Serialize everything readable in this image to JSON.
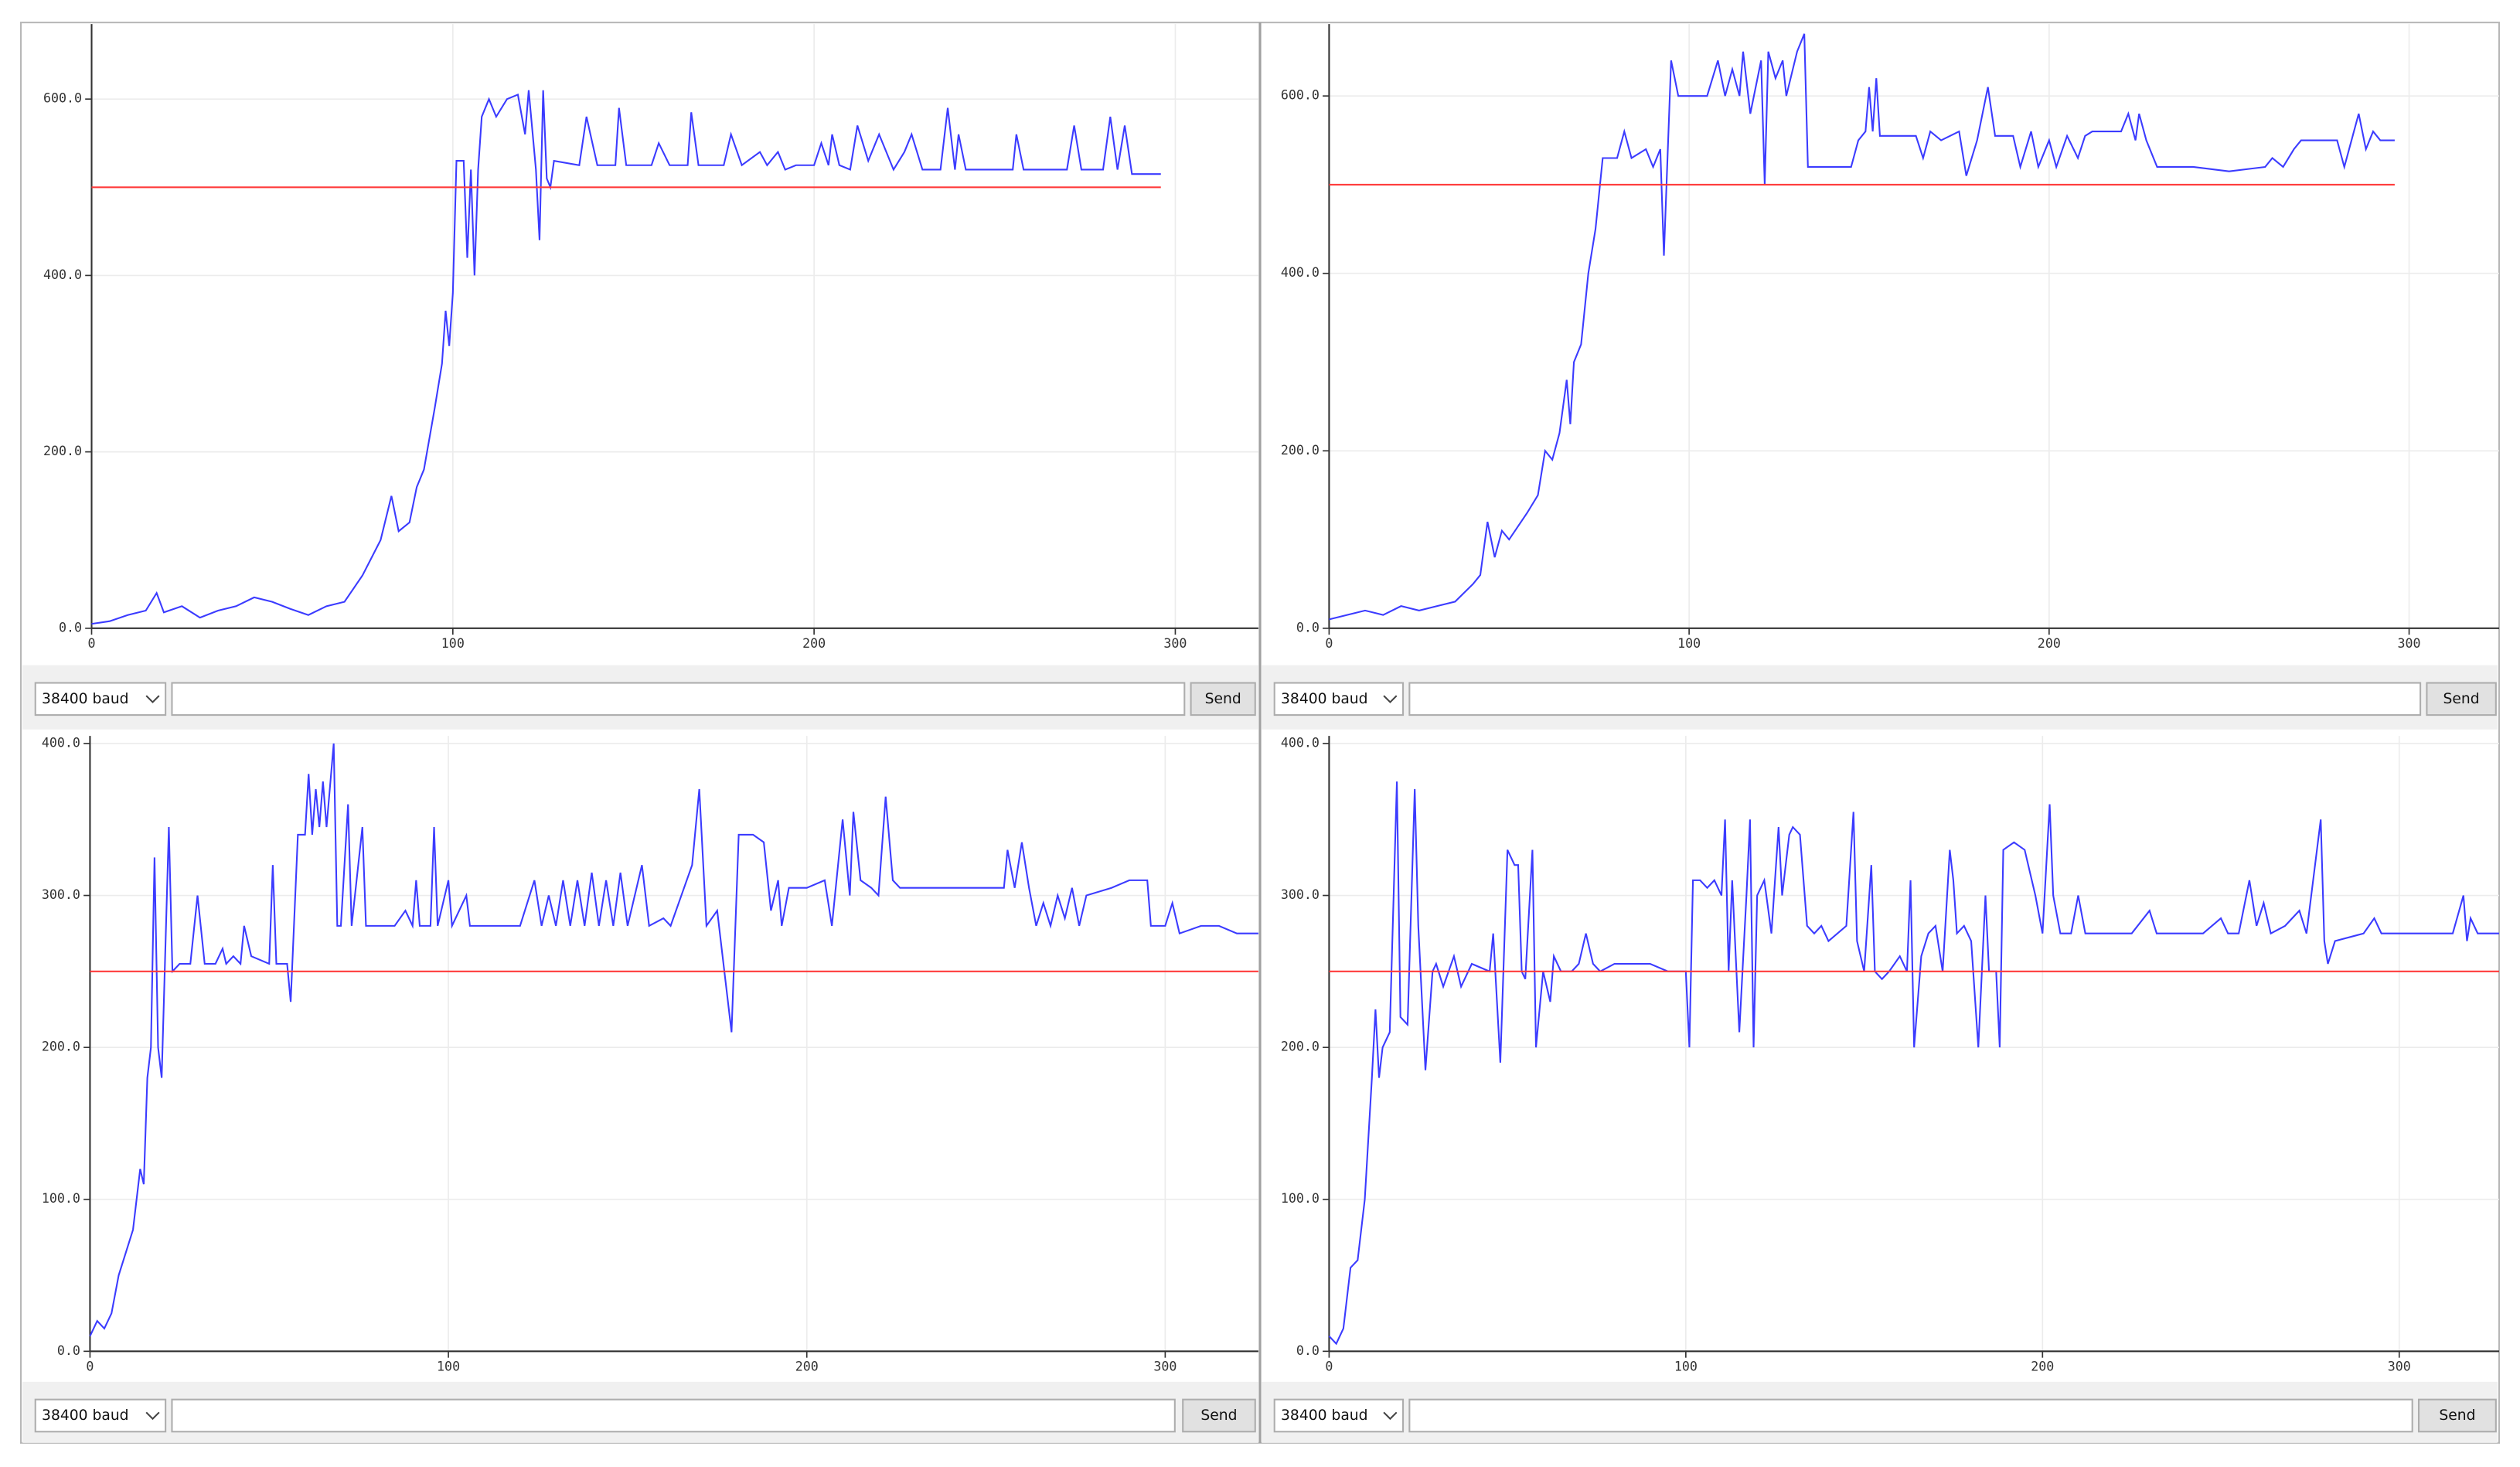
{
  "chart_data": [
    {
      "type": "line",
      "grid": true,
      "xlim": [
        0,
        323
      ],
      "ylim": [
        0,
        685
      ],
      "xticks": [
        0,
        100,
        200,
        300
      ],
      "yticks": [
        {
          "value": 0,
          "label": "0.0"
        },
        {
          "value": 200,
          "label": "200.0"
        },
        {
          "value": 400,
          "label": "400.0"
        },
        {
          "value": 600,
          "label": "600.0"
        }
      ],
      "series": [
        {
          "color": "#3b3bff",
          "x": [
            0,
            5,
            10,
            15,
            18,
            20,
            25,
            30,
            35,
            40,
            45,
            50,
            55,
            60,
            65,
            70,
            75,
            80,
            83,
            85,
            88,
            90,
            92,
            95,
            97,
            98,
            99,
            100,
            101,
            103,
            104,
            105,
            106,
            107,
            108,
            110,
            112,
            115,
            118,
            120,
            121,
            123,
            124,
            125,
            126,
            127,
            128,
            135,
            137,
            140,
            145,
            146,
            148,
            155,
            157,
            160,
            165,
            166,
            168,
            175,
            177,
            180,
            185,
            187,
            190,
            192,
            195,
            200,
            202,
            204,
            205,
            207,
            210,
            212,
            215,
            218,
            220,
            222,
            225,
            227,
            230,
            235,
            237,
            239,
            240,
            242,
            250,
            255,
            256,
            258,
            265,
            270,
            272,
            274,
            280,
            282,
            284,
            286,
            288,
            296
          ],
          "values": [
            5,
            8,
            15,
            20,
            40,
            18,
            25,
            12,
            20,
            25,
            35,
            30,
            22,
            15,
            25,
            30,
            60,
            100,
            150,
            110,
            120,
            160,
            180,
            250,
            300,
            360,
            320,
            380,
            530,
            530,
            420,
            520,
            400,
            520,
            580,
            600,
            580,
            600,
            605,
            560,
            610,
            520,
            440,
            610,
            510,
            500,
            530,
            525,
            580,
            525,
            525,
            590,
            525,
            525,
            550,
            525,
            525,
            585,
            525,
            525,
            560,
            525,
            540,
            525,
            540,
            520,
            525,
            525,
            550,
            525,
            560,
            525,
            520,
            570,
            530,
            560,
            540,
            520,
            540,
            560,
            520,
            520,
            590,
            520,
            560,
            520,
            520,
            520,
            560,
            520,
            520,
            520,
            570,
            520,
            520,
            580,
            520,
            570,
            515,
            515
          ]
        },
        {
          "color": "#ff3b3b",
          "x": [
            0,
            296
          ],
          "values": [
            500,
            500
          ]
        }
      ]
    },
    {
      "type": "line",
      "grid": true,
      "xlim": [
        0,
        325
      ],
      "ylim": [
        0,
        681
      ],
      "xticks": [
        0,
        100,
        200,
        300
      ],
      "yticks": [
        {
          "value": 0,
          "label": "0.0"
        },
        {
          "value": 200,
          "label": "200.0"
        },
        {
          "value": 400,
          "label": "400.0"
        },
        {
          "value": 600,
          "label": "600.0"
        }
      ],
      "series": [
        {
          "color": "#3b3bff",
          "x": [
            0,
            5,
            10,
            15,
            20,
            25,
            30,
            35,
            40,
            42,
            44,
            46,
            48,
            50,
            55,
            58,
            60,
            62,
            64,
            66,
            67,
            68,
            70,
            72,
            74,
            76,
            80,
            82,
            84,
            88,
            90,
            92,
            93,
            95,
            97,
            100,
            105,
            108,
            110,
            112,
            114,
            115,
            117,
            120,
            121,
            122,
            124,
            126,
            127,
            130,
            132,
            133,
            140,
            145,
            147,
            149,
            150,
            151,
            152,
            153,
            160,
            163,
            165,
            167,
            170,
            175,
            177,
            180,
            183,
            185,
            190,
            192,
            195,
            197,
            200,
            202,
            205,
            208,
            210,
            212,
            220,
            222,
            224,
            225,
            227,
            230,
            240,
            250,
            260,
            262,
            265,
            268,
            270,
            280,
            282,
            284,
            286,
            288,
            290,
            292,
            296
          ],
          "values": [
            10,
            15,
            20,
            15,
            25,
            20,
            25,
            30,
            50,
            60,
            120,
            80,
            110,
            100,
            130,
            150,
            200,
            190,
            220,
            280,
            230,
            300,
            320,
            400,
            450,
            530,
            530,
            560,
            530,
            540,
            520,
            540,
            420,
            640,
            600,
            600,
            600,
            640,
            600,
            630,
            600,
            650,
            580,
            640,
            500,
            650,
            620,
            640,
            600,
            650,
            670,
            520,
            520,
            520,
            550,
            560,
            610,
            560,
            620,
            555,
            555,
            555,
            530,
            560,
            550,
            560,
            510,
            550,
            610,
            555,
            555,
            520,
            560,
            520,
            550,
            520,
            555,
            530,
            555,
            560,
            560,
            580,
            550,
            580,
            550,
            520,
            520,
            515,
            520,
            530,
            520,
            540,
            550,
            550,
            520,
            550,
            580,
            540,
            560,
            550,
            550
          ]
        },
        {
          "color": "#ff3b3b",
          "x": [
            0,
            296
          ],
          "values": [
            500,
            500
          ]
        }
      ]
    },
    {
      "type": "line",
      "grid": true,
      "xlim": [
        0,
        326
      ],
      "ylim": [
        0,
        405
      ],
      "xticks": [
        0,
        100,
        200,
        300
      ],
      "yticks": [
        {
          "value": 0,
          "label": "0.0"
        },
        {
          "value": 100,
          "label": "100.0"
        },
        {
          "value": 200,
          "label": "200.0"
        },
        {
          "value": 300,
          "label": "300.0"
        },
        {
          "value": 400,
          "label": "400.0"
        }
      ],
      "series": [
        {
          "color": "#3b3bff",
          "x": [
            0,
            2,
            4,
            6,
            8,
            10,
            12,
            14,
            15,
            16,
            17,
            18,
            19,
            20,
            22,
            23,
            25,
            28,
            30,
            32,
            35,
            37,
            38,
            40,
            42,
            43,
            45,
            50,
            51,
            52,
            55,
            56,
            58,
            60,
            61,
            62,
            63,
            64,
            65,
            66,
            68,
            69,
            70,
            72,
            73,
            76,
            77,
            80,
            85,
            88,
            90,
            91,
            92,
            95,
            96,
            97,
            100,
            101,
            105,
            106,
            110,
            115,
            120,
            124,
            126,
            128,
            130,
            132,
            134,
            136,
            138,
            140,
            142,
            144,
            146,
            148,
            150,
            152,
            154,
            156,
            160,
            162,
            165,
            168,
            170,
            172,
            175,
            177,
            179,
            181,
            185,
            188,
            190,
            192,
            193,
            195,
            200,
            205,
            207,
            210,
            212,
            213,
            215,
            218,
            220,
            222,
            224,
            226,
            230,
            240,
            250,
            255,
            256,
            258,
            260,
            262,
            264,
            266,
            268,
            270,
            272,
            274,
            276,
            278,
            285,
            290,
            295,
            296,
            300,
            302,
            304,
            310,
            315,
            320,
            326
          ],
          "values": [
            10,
            20,
            15,
            25,
            50,
            65,
            80,
            120,
            110,
            180,
            200,
            325,
            200,
            180,
            345,
            250,
            255,
            255,
            300,
            255,
            255,
            265,
            255,
            260,
            255,
            280,
            260,
            255,
            320,
            255,
            255,
            230,
            340,
            340,
            380,
            340,
            370,
            345,
            375,
            345,
            400,
            280,
            280,
            360,
            280,
            345,
            280,
            280,
            280,
            290,
            280,
            310,
            280,
            280,
            345,
            280,
            310,
            280,
            300,
            280,
            280,
            280,
            280,
            310,
            280,
            300,
            280,
            310,
            280,
            310,
            280,
            315,
            280,
            310,
            280,
            315,
            280,
            300,
            320,
            280,
            285,
            280,
            300,
            320,
            370,
            280,
            290,
            250,
            210,
            340,
            340,
            335,
            290,
            310,
            280,
            305,
            305,
            310,
            280,
            350,
            300,
            355,
            310,
            305,
            300,
            365,
            310,
            305,
            305,
            305,
            305,
            305,
            330,
            305,
            335,
            305,
            280,
            295,
            280,
            300,
            285,
            305,
            280,
            300,
            305,
            310,
            310,
            280,
            280,
            295,
            275,
            280,
            280,
            275,
            275
          ]
        },
        {
          "color": "#ff3b3b",
          "x": [
            0,
            326
          ],
          "values": [
            250,
            250
          ]
        }
      ]
    },
    {
      "type": "line",
      "grid": true,
      "xlim": [
        0,
        328
      ],
      "ylim": [
        0,
        405
      ],
      "xticks": [
        0,
        100,
        200,
        300
      ],
      "yticks": [
        {
          "value": 0,
          "label": "0.0"
        },
        {
          "value": 100,
          "label": "100.0"
        },
        {
          "value": 200,
          "label": "200.0"
        },
        {
          "value": 300,
          "label": "300.0"
        },
        {
          "value": 400,
          "label": "400.0"
        }
      ],
      "series": [
        {
          "color": "#3b3bff",
          "x": [
            0,
            2,
            4,
            6,
            8,
            10,
            12,
            13,
            14,
            15,
            17,
            19,
            20,
            22,
            24,
            25,
            27,
            29,
            30,
            32,
            35,
            37,
            40,
            45,
            46,
            48,
            50,
            52,
            53,
            54,
            55,
            57,
            58,
            60,
            62,
            63,
            65,
            68,
            70,
            72,
            74,
            76,
            80,
            85,
            90,
            95,
            100,
            101,
            102,
            104,
            106,
            108,
            110,
            111,
            112,
            113,
            115,
            117,
            118,
            119,
            120,
            122,
            124,
            126,
            127,
            129,
            130,
            132,
            134,
            136,
            138,
            140,
            145,
            147,
            148,
            150,
            152,
            153,
            155,
            157,
            160,
            162,
            163,
            164,
            166,
            168,
            170,
            172,
            174,
            175,
            176,
            178,
            180,
            182,
            184,
            185,
            187,
            188,
            189,
            192,
            195,
            198,
            200,
            202,
            203,
            205,
            208,
            210,
            212,
            220,
            225,
            230,
            232,
            240,
            245,
            250,
            252,
            255,
            258,
            260,
            262,
            264,
            268,
            272,
            274,
            278,
            279,
            280,
            282,
            290,
            293,
            295,
            300,
            305,
            310,
            315,
            318,
            319,
            320,
            322,
            328
          ],
          "values": [
            10,
            5,
            15,
            55,
            60,
            100,
            180,
            225,
            180,
            200,
            210,
            375,
            220,
            215,
            370,
            280,
            185,
            250,
            255,
            240,
            260,
            240,
            255,
            250,
            275,
            190,
            330,
            320,
            320,
            250,
            245,
            330,
            200,
            250,
            230,
            260,
            250,
            250,
            255,
            275,
            255,
            250,
            255,
            255,
            255,
            250,
            250,
            200,
            310,
            310,
            305,
            310,
            300,
            350,
            250,
            310,
            210,
            300,
            350,
            200,
            300,
            310,
            275,
            345,
            300,
            340,
            345,
            340,
            280,
            275,
            280,
            270,
            280,
            355,
            270,
            250,
            320,
            250,
            245,
            250,
            260,
            250,
            310,
            200,
            260,
            275,
            280,
            250,
            330,
            310,
            275,
            280,
            270,
            200,
            300,
            250,
            250,
            200,
            330,
            335,
            330,
            300,
            275,
            360,
            300,
            275,
            275,
            300,
            275,
            275,
            275,
            290,
            275,
            275,
            275,
            285,
            275,
            275,
            310,
            280,
            295,
            275,
            280,
            290,
            275,
            350,
            270,
            255,
            270,
            275,
            285,
            275,
            275,
            275,
            275,
            275,
            300,
            270,
            285,
            275,
            275
          ]
        },
        {
          "color": "#ff3b3b",
          "x": [
            0,
            328
          ],
          "values": [
            250,
            250
          ]
        }
      ]
    }
  ],
  "controls": [
    {
      "baud": "38400 baud",
      "button": "Send"
    },
    {
      "baud": "38400 baud",
      "button": "Send"
    },
    {
      "baud": "38400 baud",
      "button": "Send"
    },
    {
      "baud": "38400 baud",
      "button": "Send"
    }
  ]
}
